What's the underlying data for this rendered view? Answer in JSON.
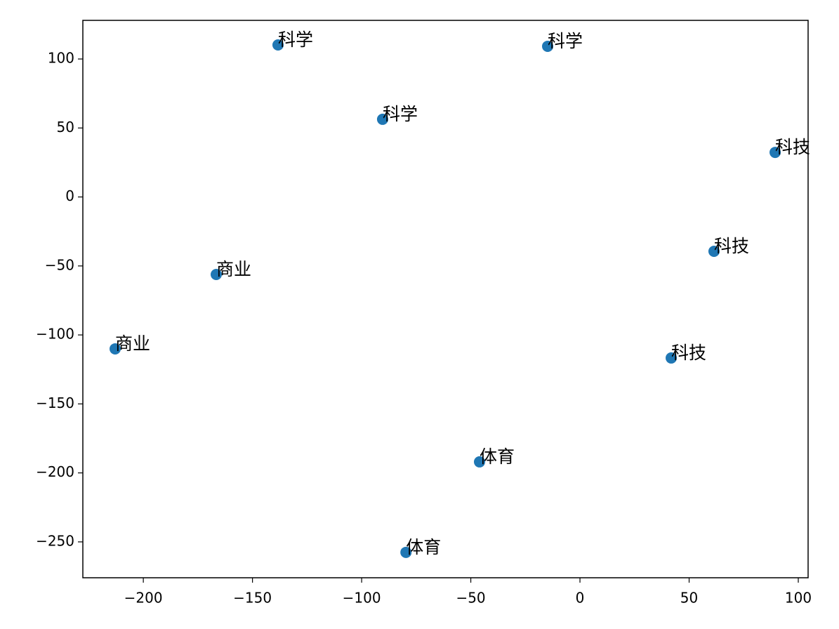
{
  "chart_data": {
    "type": "scatter",
    "x": [
      -138.3,
      -14.8,
      -90.4,
      89.4,
      61.4,
      41.8,
      -166.6,
      -212.9,
      -46.0,
      -79.7
    ],
    "y": [
      110.2,
      109.2,
      56.3,
      32.3,
      -39.4,
      -116.7,
      -56.2,
      -110.1,
      -192.0,
      -257.6
    ],
    "labels": [
      "科学",
      "科学",
      "科学",
      "科技",
      "科技",
      "科技",
      "商业",
      "商业",
      "体育",
      "体育"
    ],
    "color": "#1f77b4",
    "xlim": [
      -227.7,
      104.5
    ],
    "ylim": [
      -276,
      128
    ],
    "xticks": [
      {
        "value": -200,
        "label": "−200"
      },
      {
        "value": -150,
        "label": "−150"
      },
      {
        "value": -100,
        "label": "−100"
      },
      {
        "value": -50,
        "label": "−50"
      },
      0,
      50,
      100
    ],
    "yticks": [
      {
        "value": -250,
        "label": "−250"
      },
      {
        "value": -200,
        "label": "−200"
      },
      {
        "value": -150,
        "label": "−150"
      },
      {
        "value": -100,
        "label": "−100"
      },
      {
        "value": -50,
        "label": "−50"
      },
      0,
      50,
      100
    ]
  }
}
